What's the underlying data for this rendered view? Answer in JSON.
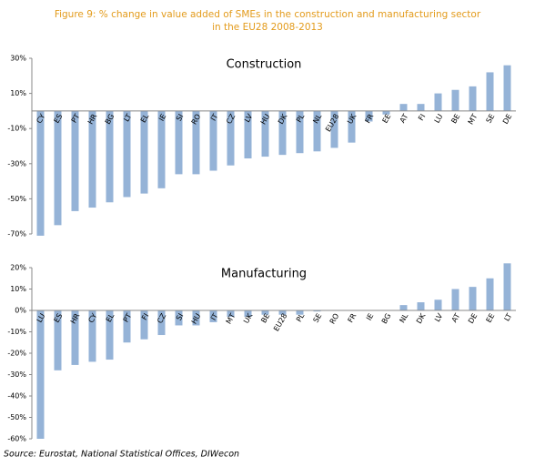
{
  "title": "Figure 9: % change in value added of SMEs in the construction and manufacturing sector in the EU28 2008-2013",
  "source": "Source: Eurostat, National Statistical Offices, DIWecon",
  "chart_data": [
    {
      "type": "bar",
      "title": "Construction",
      "color": "#95b3d7",
      "categories": [
        "CY",
        "ES",
        "PT",
        "HR",
        "BG",
        "LT",
        "EL",
        "IE",
        "SI",
        "RO",
        "IT",
        "CZ",
        "LV",
        "HU",
        "DK",
        "PL",
        "NL",
        "EU28",
        "UK",
        "FR",
        "EE",
        "AT",
        "FI",
        "LU",
        "BE",
        "MT",
        "SE",
        "DE"
      ],
      "values": [
        -71,
        -65,
        -57,
        -55,
        -52,
        -49,
        -47,
        -44,
        -36,
        -36,
        -34,
        -31,
        -27,
        -26,
        -25,
        -24,
        -23,
        -21,
        -18,
        -6,
        -2,
        4,
        4,
        10,
        12,
        14,
        22,
        26
      ],
      "ylim": [
        -70,
        30
      ],
      "yticks": [
        {
          "value": 30,
          "label": "30%"
        },
        {
          "value": 10,
          "label": "10%"
        },
        {
          "value": -10,
          "label": "-10%"
        },
        {
          "value": -30,
          "label": "-30%"
        },
        {
          "value": -50,
          "label": "-50%"
        },
        {
          "value": -70,
          "label": "-70%"
        }
      ]
    },
    {
      "type": "bar",
      "title": "Manufacturing",
      "color": "#95b3d7",
      "categories": [
        "LU",
        "ES",
        "HR",
        "CY",
        "EL",
        "PT",
        "FI",
        "CZ",
        "SI",
        "HU",
        "IT",
        "MT",
        "UK",
        "BE",
        "EU28",
        "PL",
        "SE",
        "RO",
        "FR",
        "IE",
        "BG",
        "NL",
        "DK",
        "LV",
        "AT",
        "DE",
        "EE",
        "LT"
      ],
      "values": [
        -60,
        -28,
        -25.5,
        -24,
        -23,
        -15,
        -13.5,
        -11.5,
        -7,
        -7,
        -5.5,
        -3,
        -3,
        -2,
        -2,
        -2,
        -0.5,
        -0.2,
        -0.1,
        0,
        0,
        2.5,
        3.8,
        5,
        10,
        11,
        15,
        22
      ],
      "ylim": [
        -60,
        20
      ],
      "yticks": [
        {
          "value": 20,
          "label": "20%"
        },
        {
          "value": 10,
          "label": "10%"
        },
        {
          "value": 0,
          "label": "0%"
        },
        {
          "value": -10,
          "label": "-10%"
        },
        {
          "value": -20,
          "label": "-20%"
        },
        {
          "value": -30,
          "label": "-30%"
        },
        {
          "value": -40,
          "label": "-40%"
        },
        {
          "value": -50,
          "label": "-50%"
        },
        {
          "value": -60,
          "label": "-60%"
        }
      ]
    }
  ]
}
